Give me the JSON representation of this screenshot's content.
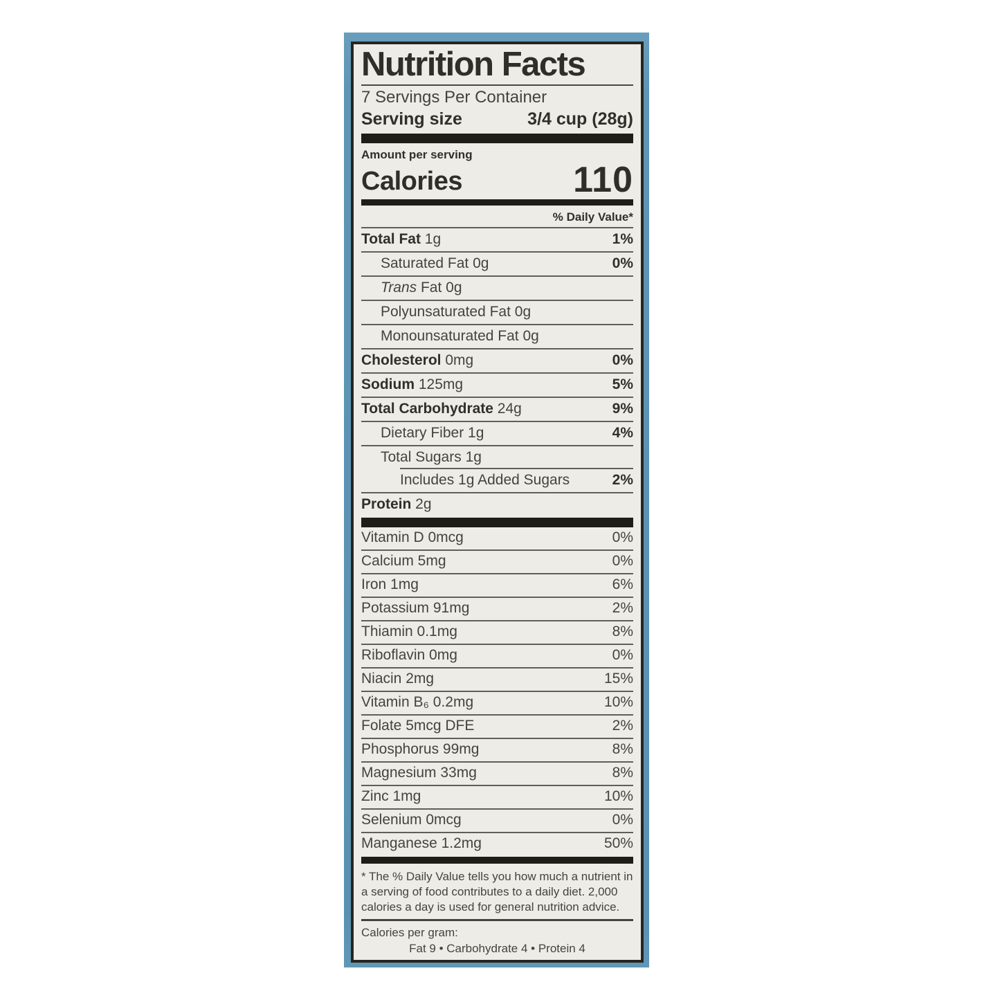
{
  "colors": {
    "page_background": "#ffffff",
    "box_blue": "#5e95b5",
    "label_background": "#edece7",
    "label_border": "#26251f",
    "text_dark": "#302f2a",
    "text_regular": "#45433e",
    "bar_black": "#1e1d18"
  },
  "label": {
    "title": "Nutrition Facts",
    "servings_per_container": "7 Servings Per Container",
    "serving_size_label": "Serving size",
    "serving_size_value": "3/4 cup (28g)",
    "amount_per_serving": "Amount per serving",
    "calories_label": "Calories",
    "calories_value": "110",
    "daily_value_header": "% Daily Value*",
    "macro_rows": [
      {
        "bold": "Total Fat",
        "rest": " 1g",
        "dv": "1%",
        "indent": 0
      },
      {
        "rest": "Saturated Fat 0g",
        "dv": "0%",
        "indent": 1
      },
      {
        "italic": "Trans",
        "rest": " Fat 0g",
        "dv": "",
        "indent": 1
      },
      {
        "rest": "Polyunsaturated Fat 0g",
        "dv": "",
        "indent": 1
      },
      {
        "rest": "Monounsaturated Fat 0g",
        "dv": "",
        "indent": 1
      },
      {
        "bold": "Cholesterol",
        "rest": " 0mg",
        "dv": "0%",
        "indent": 0
      },
      {
        "bold": "Sodium",
        "rest": " 125mg",
        "dv": "5%",
        "indent": 0
      },
      {
        "bold": "Total Carbohydrate",
        "rest": " 24g",
        "dv": "9%",
        "indent": 0
      },
      {
        "rest": "Dietary Fiber 1g",
        "dv": "4%",
        "indent": 1
      },
      {
        "rest": "Total Sugars 1g",
        "dv": "",
        "indent": 1
      },
      {
        "rest": "Includes 1g Added Sugars",
        "dv": "2%",
        "indent": 2,
        "inset_line": true
      },
      {
        "bold": "Protein",
        "rest": " 2g",
        "dv": "",
        "indent": 0
      }
    ],
    "micro_rows": [
      {
        "name": "Vitamin D 0mcg",
        "dv": "0%"
      },
      {
        "name": "Calcium 5mg",
        "dv": "0%"
      },
      {
        "name": "Iron 1mg",
        "dv": "6%"
      },
      {
        "name": "Potassium 91mg",
        "dv": "2%"
      },
      {
        "name": "Thiamin 0.1mg",
        "dv": "8%"
      },
      {
        "name": "Riboflavin 0mg",
        "dv": "0%"
      },
      {
        "name": "Niacin 2mg",
        "dv": "15%"
      },
      {
        "name": "Vitamin B₆ 0.2mg",
        "dv": "10%"
      },
      {
        "name": "Folate 5mcg DFE",
        "dv": "2%"
      },
      {
        "name": "Phosphorus 99mg",
        "dv": "8%"
      },
      {
        "name": "Magnesium 33mg",
        "dv": "8%"
      },
      {
        "name": "Zinc 1mg",
        "dv": "10%"
      },
      {
        "name": "Selenium 0mcg",
        "dv": "0%"
      },
      {
        "name": "Manganese 1.2mg",
        "dv": "50%"
      }
    ],
    "footnote": "* The % Daily Value tells you how much a nutrient in a serving of food contributes to a daily diet. 2,000 calories a day is used for general nutrition advice.",
    "calories_per_gram": {
      "heading": "Calories per gram:",
      "items": [
        "Fat 9",
        "Carbohydrate 4",
        "Protein 4"
      ],
      "separator": "   •   "
    }
  }
}
